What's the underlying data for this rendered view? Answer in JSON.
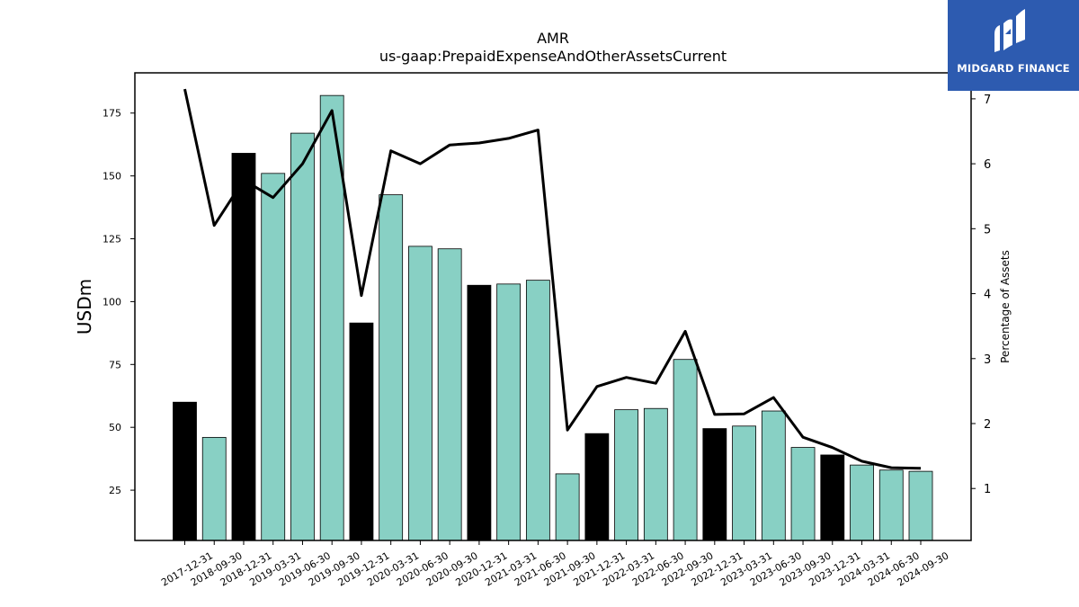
{
  "chart_data": {
    "type": "bar",
    "title": "AMR",
    "subtitle": "us-gaap:PrepaidExpenseAndOtherAssetsCurrent",
    "ylabel": "USDm",
    "y2label": "Percentage of Assets",
    "ylim": [
      5,
      191
    ],
    "y2lim": [
      0.2,
      7.4
    ],
    "yticks": [
      25,
      50,
      75,
      100,
      125,
      150,
      175
    ],
    "y2ticks": [
      1,
      2,
      3,
      4,
      5,
      6,
      7
    ],
    "grid": false,
    "categories": [
      "2017-12-31",
      "2018-09-30",
      "2018-12-31",
      "2019-03-31",
      "2019-06-30",
      "2019-09-30",
      "2019-12-31",
      "2020-03-31",
      "2020-06-30",
      "2020-09-30",
      "2020-12-31",
      "2021-03-31",
      "2021-06-30",
      "2021-09-30",
      "2021-12-31",
      "2022-03-31",
      "2022-06-30",
      "2022-09-30",
      "2022-12-31",
      "2023-03-31",
      "2023-06-30",
      "2023-09-30",
      "2023-12-31",
      "2024-03-31",
      "2024-06-30",
      "2024-09-30"
    ],
    "series": [
      {
        "kind": "bar",
        "axis": "left",
        "values": [
          60,
          46,
          159,
          151,
          167,
          182,
          91.5,
          142.5,
          122,
          121,
          106.5,
          107,
          108.5,
          31.5,
          47.5,
          57,
          57.5,
          77,
          49.5,
          50.5,
          56.5,
          42,
          39,
          35,
          33,
          32.5
        ],
        "colors": [
          "#000000",
          "#88d0c4",
          "#000000",
          "#88d0c4",
          "#88d0c4",
          "#88d0c4",
          "#000000",
          "#88d0c4",
          "#88d0c4",
          "#88d0c4",
          "#000000",
          "#88d0c4",
          "#88d0c4",
          "#88d0c4",
          "#000000",
          "#88d0c4",
          "#88d0c4",
          "#88d0c4",
          "#000000",
          "#88d0c4",
          "#88d0c4",
          "#88d0c4",
          "#000000",
          "#88d0c4",
          "#88d0c4",
          "#88d0c4"
        ]
      },
      {
        "kind": "line",
        "axis": "right",
        "values": [
          7.15,
          5.05,
          5.75,
          5.48,
          6.0,
          6.82,
          3.97,
          6.2,
          6.0,
          6.29,
          6.32,
          6.39,
          6.52,
          1.9,
          2.57,
          2.71,
          2.62,
          3.42,
          2.14,
          2.15,
          2.4,
          1.79,
          1.63,
          1.42,
          1.32,
          1.31
        ],
        "color": "#000000"
      }
    ]
  },
  "logo": {
    "text": "MIDGARD FINANCE",
    "bg": "#2d5bb0"
  }
}
